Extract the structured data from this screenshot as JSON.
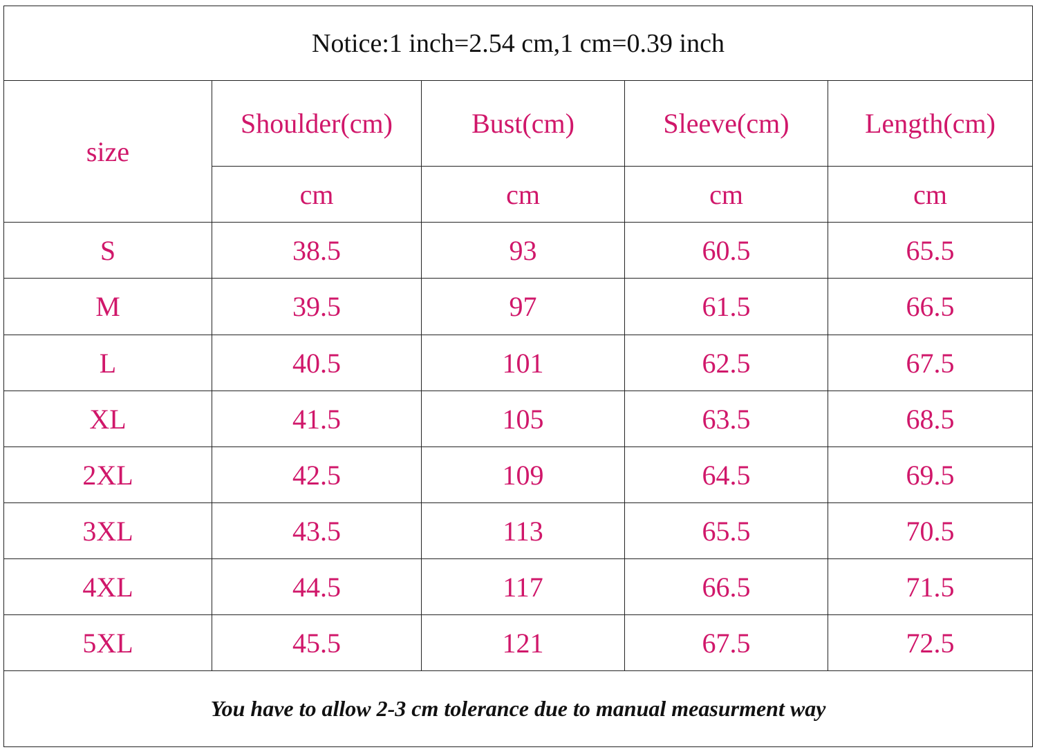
{
  "header": {
    "notice": "Notice:1 inch=2.54 cm,1 cm=0.39 inch"
  },
  "table": {
    "size_label": "size",
    "headers": [
      "Shoulder(cm)",
      "Bust(cm)",
      "Sleeve(cm)",
      "Length(cm)"
    ],
    "units": [
      "cm",
      "cm",
      "cm",
      "cm"
    ],
    "rows": [
      [
        "S",
        38.5,
        93,
        60.5,
        65.5
      ],
      [
        "M",
        39.5,
        97,
        61.5,
        66.5
      ],
      [
        "L",
        40.5,
        101,
        62.5,
        67.5
      ],
      [
        "XL",
        41.5,
        105,
        63.5,
        68.5
      ],
      [
        "2XL",
        42.5,
        109,
        64.5,
        69.5
      ],
      [
        "3XL",
        43.5,
        113,
        65.5,
        70.5
      ],
      [
        "4XL",
        44.5,
        117,
        66.5,
        71.5
      ],
      [
        "5XL",
        45.5,
        121,
        67.5,
        72.5
      ]
    ]
  },
  "footer": {
    "note": "You have to allow 2-3 cm tolerance due to manual measurment way"
  }
}
